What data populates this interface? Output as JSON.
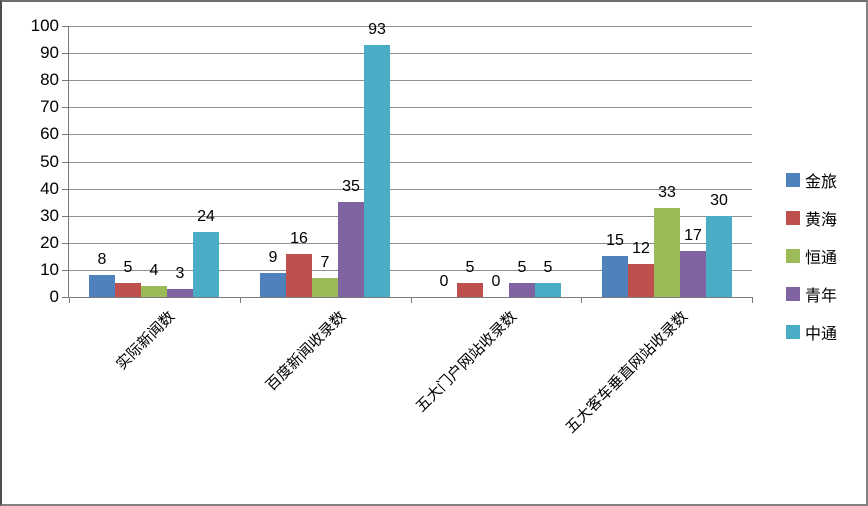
{
  "chart_data": {
    "type": "bar",
    "title": "",
    "xlabel": "",
    "ylabel": "",
    "categories": [
      "实际新闻数",
      "百度新闻收录数",
      "五大门户网站收录数",
      "五大客车垂直网站收录数"
    ],
    "series": [
      {
        "name": "金旅",
        "color": "#4F81BD",
        "values": [
          8,
          9,
          0,
          15
        ]
      },
      {
        "name": "黄海",
        "color": "#C0504D",
        "values": [
          5,
          16,
          5,
          12
        ]
      },
      {
        "name": "恒通",
        "color": "#9BBB59",
        "values": [
          4,
          7,
          0,
          33
        ]
      },
      {
        "name": "青年",
        "color": "#8064A2",
        "values": [
          3,
          35,
          5,
          17
        ]
      },
      {
        "name": "中通",
        "color": "#4BACC6",
        "values": [
          24,
          93,
          5,
          30
        ]
      }
    ],
    "ylim": [
      0,
      100
    ],
    "ytick_step": 10,
    "yticks": [
      0,
      10,
      20,
      30,
      40,
      50,
      60,
      70,
      80,
      90,
      100
    ],
    "grid": true,
    "data_labels": true,
    "legend_position": "right"
  },
  "colors": {
    "gridline": "#8f8f8f",
    "axis": "#7a7a7a",
    "text": "#000000",
    "frame_border": "#808080",
    "background": "#ffffff"
  }
}
